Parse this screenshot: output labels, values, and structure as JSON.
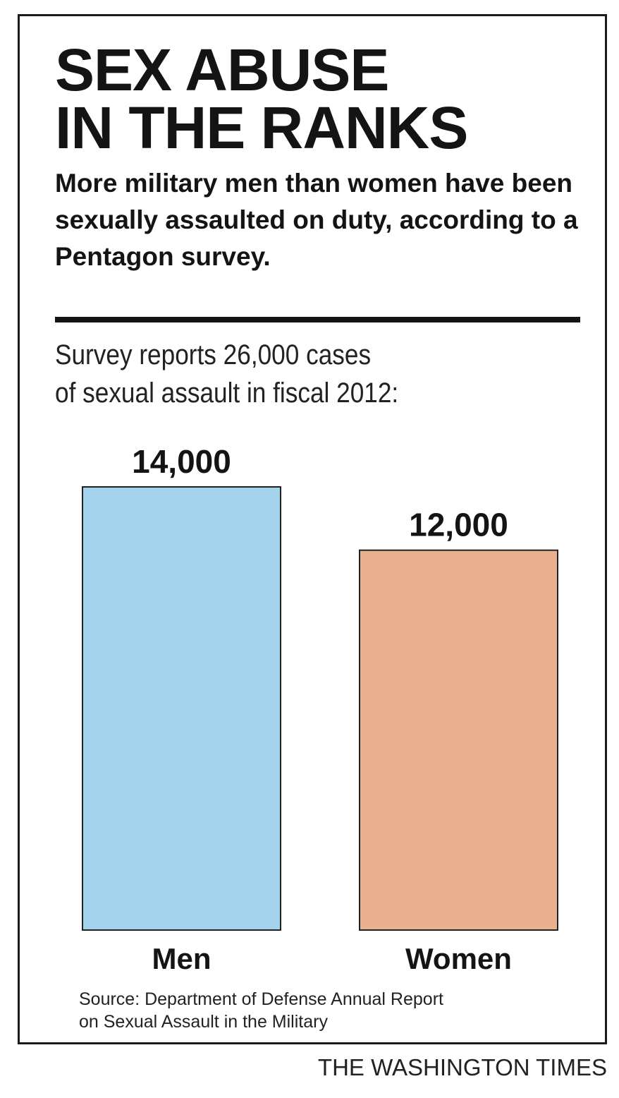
{
  "headline": {
    "line1": "SEX ABUSE",
    "line2": "IN THE RANKS"
  },
  "subhead": "More military men than women have been sexually assaulted on duty, according to a Pentagon survey.",
  "intro": {
    "line1": "Survey reports 26,000 cases",
    "line2": "of sexual assault in fiscal 2012:"
  },
  "chart_data": {
    "type": "bar",
    "categories": [
      "Men",
      "Women"
    ],
    "values": [
      14000,
      12000
    ],
    "value_labels": [
      "14,000",
      "12,000"
    ],
    "colors": [
      "#a4d3ee",
      "#eab18e"
    ],
    "ylim": [
      0,
      14000
    ],
    "grid": false,
    "xlabel": "",
    "ylabel": ""
  },
  "source": {
    "line1": "Source: Department of Defense Annual Report",
    "line2": "on Sexual Assault in the Military"
  },
  "credit": "THE WASHINGTON TIMES"
}
